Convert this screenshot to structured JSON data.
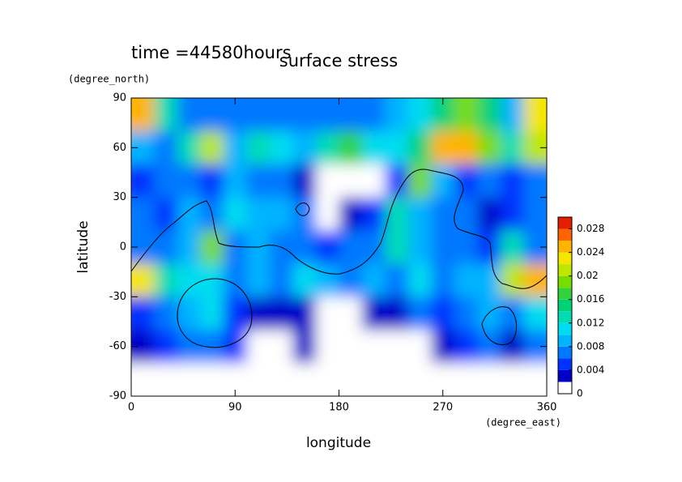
{
  "chart_data": {
    "type": "contour",
    "title": "surface stress",
    "subtitle": "time =44580hours",
    "x_label": "longitude",
    "x_unit": "(degree_east)",
    "y_label": "latitude",
    "y_unit": "(degree_north)",
    "x": [
      10,
      30,
      50,
      70,
      90,
      110,
      130,
      150,
      170,
      190,
      210,
      230,
      250,
      270,
      290,
      310,
      330,
      350
    ],
    "y": [
      80,
      60,
      40,
      20,
      0,
      -20,
      -40,
      -60,
      -80
    ],
    "values": [
      [
        0.024,
        0.012,
        0.006,
        0.006,
        0.006,
        0.006,
        0.006,
        0.006,
        0.006,
        0.006,
        0.006,
        0.008,
        0.01,
        0.014,
        0.018,
        0.014,
        0.008,
        0.022
      ],
      [
        0.008,
        0.006,
        0.012,
        0.02,
        0.008,
        0.012,
        0.01,
        0.008,
        0.012,
        0.016,
        0.01,
        0.01,
        0.014,
        0.024,
        0.024,
        0.018,
        0.012,
        0.02
      ],
      [
        0.004,
        0.006,
        0.006,
        0.004,
        0.008,
        0.006,
        0.006,
        0.002,
        0,
        0,
        0,
        0.004,
        0.018,
        0.008,
        0.004,
        0.006,
        0.004,
        0.006
      ],
      [
        0.006,
        0.004,
        0.008,
        0.006,
        0.01,
        0.008,
        0.008,
        0.006,
        0,
        0.002,
        0.004,
        0.012,
        0.008,
        0.006,
        0.006,
        0.002,
        0.004,
        0.006
      ],
      [
        0.006,
        0.006,
        0.008,
        0.018,
        0.006,
        0.008,
        0.006,
        0.006,
        0.004,
        0.006,
        0.006,
        0.012,
        0.008,
        0.006,
        0.006,
        0.004,
        0.012,
        0.006
      ],
      [
        0.022,
        0.012,
        0.01,
        0.01,
        0.006,
        0.008,
        0.006,
        0.01,
        0.008,
        0.006,
        0.008,
        0.006,
        0.01,
        0.006,
        0.008,
        0.008,
        0.02,
        0.024
      ],
      [
        0.004,
        0.006,
        0.008,
        0.01,
        0.004,
        0.002,
        0.002,
        0.002,
        0,
        0,
        0.002,
        0.002,
        0.006,
        0.004,
        0.006,
        0.008,
        0.006,
        0.01
      ],
      [
        0.002,
        0.004,
        0.006,
        0.006,
        0.004,
        0,
        0,
        0.002,
        0,
        0,
        0,
        0,
        0,
        0.002,
        0.004,
        0.006,
        0.002,
        0.006
      ],
      [
        0,
        0,
        0,
        0,
        0,
        0,
        0,
        0,
        0,
        0,
        0,
        0,
        0,
        0,
        0,
        0,
        0,
        0
      ]
    ],
    "levels": [
      0,
      0.002,
      0.004,
      0.006,
      0.008,
      0.01,
      0.012,
      0.014,
      0.016,
      0.018,
      0.02,
      0.022,
      0.024,
      0.026,
      0.028,
      0.03
    ],
    "colors": [
      "#ffffff",
      "#0000c8",
      "#0032ff",
      "#0078ff",
      "#00b4ff",
      "#00dcf0",
      "#00dcb4",
      "#00d278",
      "#32d23c",
      "#78dc00",
      "#bee600",
      "#f5e600",
      "#ffb400",
      "#ff6400",
      "#e61e00"
    ],
    "xlim": [
      0,
      360
    ],
    "xticks": [
      0,
      90,
      180,
      270,
      360
    ],
    "ylim": [
      -90,
      90
    ],
    "yticks": [
      -90,
      -60,
      -30,
      0,
      30,
      60,
      90
    ],
    "clim": [
      0,
      0.03
    ],
    "cticks": [
      0,
      0.004,
      0.008,
      0.012,
      0.016,
      0.02,
      0.024,
      0.028
    ]
  }
}
